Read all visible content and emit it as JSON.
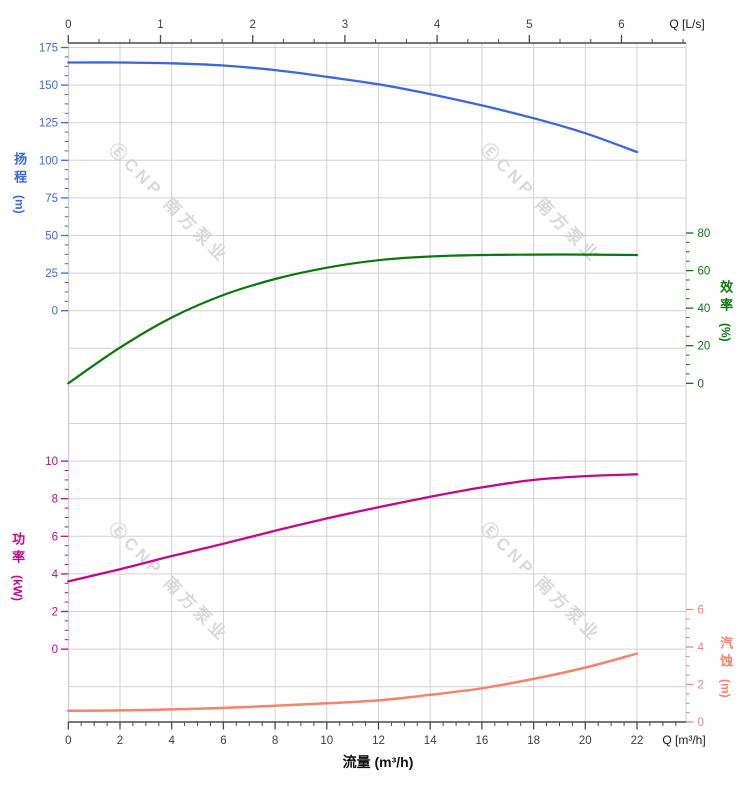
{
  "chart_data": {
    "type": "line",
    "x_axis_bottom": {
      "end_label": "Q [m³/h]",
      "axis_title": "流量 (m³/h)",
      "ticks": [
        0,
        2,
        4,
        6,
        8,
        10,
        12,
        14,
        16,
        18,
        20,
        22
      ],
      "range": [
        0,
        23.9
      ],
      "minor_step": 0.5,
      "color": "#3d3d3d"
    },
    "x_axis_top": {
      "end_label": "Q [L/s]",
      "ticks": [
        0,
        1,
        2,
        3,
        4,
        5,
        6
      ],
      "minor_divisions": 3,
      "color": "#3d3d3d"
    },
    "y_axes": {
      "head": {
        "title": "扬程",
        "unit": "(m)",
        "side": "left",
        "ticks": [
          0,
          25,
          50,
          75,
          100,
          125,
          150,
          175
        ],
        "minor_step": 6.25,
        "color": "#3c68d7"
      },
      "efficiency": {
        "title": "效率",
        "unit": "(%)",
        "side": "right",
        "ticks": [
          0,
          20,
          40,
          60,
          80
        ],
        "minor_step": 5,
        "color": "#0b770b"
      },
      "power": {
        "title": "功率",
        "unit": "(kW)",
        "side": "left",
        "ticks": [
          0,
          2,
          4,
          6,
          8,
          10
        ],
        "minor_step": 0.5,
        "color": "#c2098c"
      },
      "npsh": {
        "title": "汽蚀",
        "unit": "(m)",
        "side": "right",
        "ticks": [
          0,
          2,
          4,
          6
        ],
        "minor_step": 0.5,
        "color": "#f5836e"
      }
    },
    "x": [
      0,
      2,
      4,
      6,
      8,
      10,
      12,
      14,
      16,
      18,
      20,
      22
    ],
    "series": [
      {
        "name": "head-curve",
        "axis": "head",
        "color": "#3c68d7",
        "width": 2.3,
        "values": [
          165,
          165,
          164.5,
          163,
          160,
          155.5,
          150.5,
          144,
          136.5,
          128,
          118,
          105.5
        ]
      },
      {
        "name": "efficiency-curve",
        "axis": "efficiency",
        "color": "#0b770b",
        "width": 2.2,
        "values": [
          0,
          19,
          35,
          47,
          55.5,
          61.5,
          65.5,
          67.5,
          68.3,
          68.5,
          68.5,
          68.3
        ]
      },
      {
        "name": "power-curve",
        "axis": "power",
        "color": "#c2098c",
        "width": 2.3,
        "values": [
          3.6,
          4.25,
          4.95,
          5.6,
          6.3,
          6.95,
          7.55,
          8.1,
          8.6,
          9.0,
          9.2,
          9.3
        ]
      },
      {
        "name": "npsh-curve",
        "axis": "npsh",
        "color": "#f5836e",
        "width": 2.5,
        "values": [
          0.6,
          0.62,
          0.67,
          0.75,
          0.87,
          1.0,
          1.15,
          1.45,
          1.8,
          2.3,
          2.9,
          3.65
        ]
      }
    ],
    "grid": true,
    "grid_color": "#d2d2d2",
    "frame_color": "#4a4a4a",
    "watermark": "ⒺCNP 南方泵业"
  }
}
